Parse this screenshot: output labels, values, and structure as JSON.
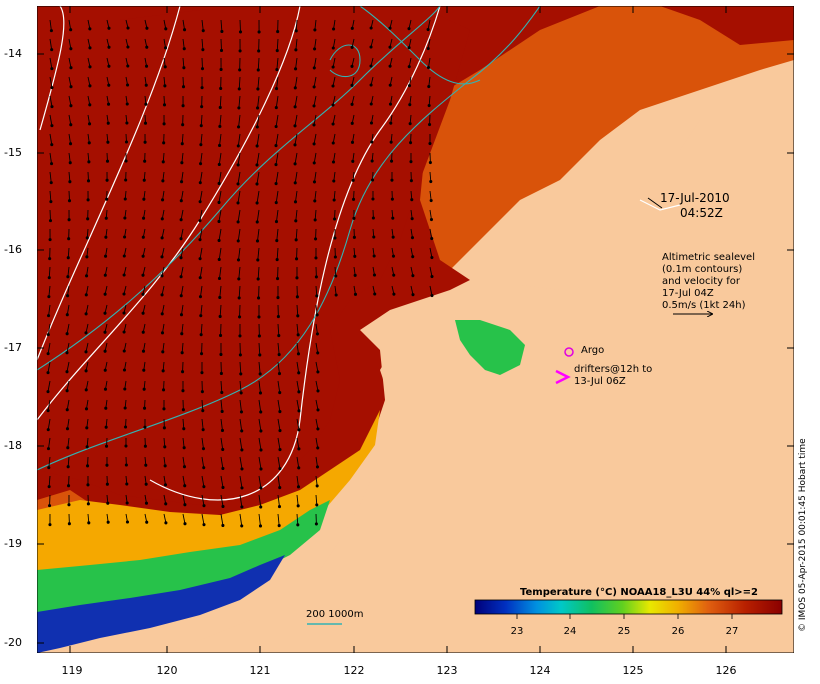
{
  "map": {
    "timestamp_date": "17-Jul-2010",
    "timestamp_time": "04:52Z",
    "altimetry_note": [
      "Altimetric sealevel",
      "(0.1m contours)",
      "and velocity for",
      "17-Jul 04Z",
      "0.5m/s (1kt 24h)"
    ],
    "argo_label": "Argo",
    "drifters_label": [
      "drifters@12h to",
      "13-Jul 06Z"
    ],
    "scale_label": "200  1000m",
    "credit": "© IMOS 05-Apr-2015 00:01:45 Hobart time",
    "colorbar_title": "Temperature (°C) NOAA18_L3U 44% ql>=2",
    "colorbar_ticks": [
      "23",
      "24",
      "25",
      "26",
      "27"
    ],
    "y_ticks": [
      "-14",
      "-15",
      "-16",
      "-17",
      "-18",
      "-19",
      "-20"
    ],
    "x_ticks": [
      "119",
      "120",
      "121",
      "122",
      "123",
      "124",
      "125",
      "126"
    ],
    "colors": {
      "land": "#f9c99c",
      "warm_sst": "#a50f00",
      "mid_sst": "#d9530a",
      "coastal_sst": "#f5a800",
      "cool_sst": "#27c24a",
      "cold_sst": "#1030b0",
      "argo": "#e000e0",
      "drifter": "#ff00ff",
      "contour_ssh": "#ffffff",
      "contour_bathy": "#33b3b3"
    }
  }
}
